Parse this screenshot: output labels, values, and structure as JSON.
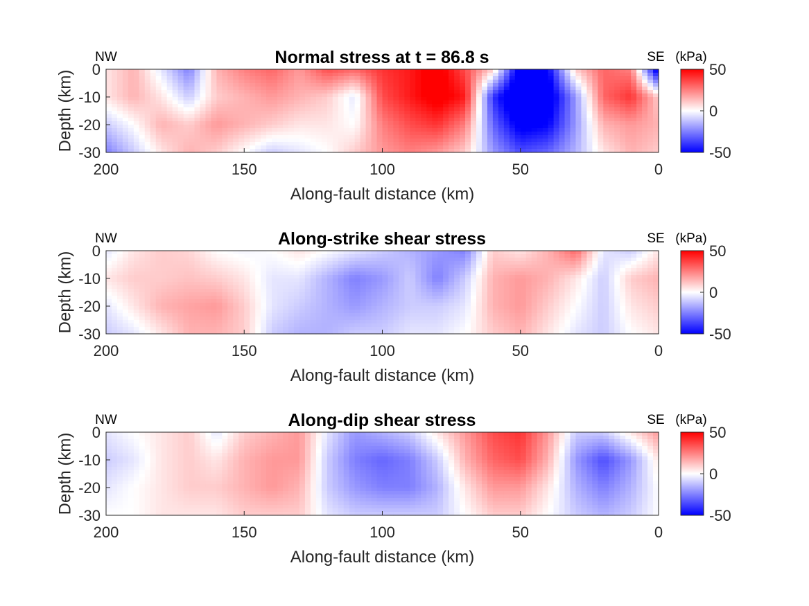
{
  "figure": {
    "x_direction_left": "NW",
    "x_direction_right": "SE",
    "colorbar_unit": "(kPa)"
  },
  "colors": {
    "negative": "#0000ff",
    "zero": "#ffffff",
    "positive": "#ff0000",
    "text": "#262626"
  },
  "chart_data": [
    {
      "type": "heatmap",
      "title": "Normal stress at t = 86.8 s",
      "xlabel": "Along-fault distance (km)",
      "ylabel": "Depth (km)",
      "x_reversed": true,
      "xlim": [
        200,
        0
      ],
      "ylim": [
        -30,
        0
      ],
      "xticks": [
        "200",
        "150",
        "100",
        "50",
        "0"
      ],
      "yticks": [
        "0",
        "-10",
        "-20",
        "-30"
      ],
      "colorbar": {
        "range": [
          -50,
          50
        ],
        "ticks": [
          "50",
          "0",
          "-50"
        ],
        "unit": "(kPa)"
      },
      "x": [
        200,
        190,
        180,
        170,
        160,
        150,
        140,
        130,
        120,
        110,
        100,
        90,
        80,
        70,
        60,
        50,
        40,
        30,
        20,
        10,
        0
      ],
      "y": [
        0,
        -10,
        -20,
        -30
      ],
      "z": [
        [
          5,
          15,
          -5,
          -25,
          15,
          25,
          30,
          20,
          35,
          30,
          40,
          45,
          55,
          35,
          10,
          -60,
          -50,
          10,
          30,
          25,
          -60
        ],
        [
          5,
          15,
          5,
          -10,
          10,
          15,
          20,
          15,
          10,
          -5,
          35,
          45,
          55,
          45,
          -40,
          -70,
          -60,
          -20,
          30,
          40,
          10
        ],
        [
          -10,
          0,
          15,
          10,
          20,
          15,
          10,
          5,
          5,
          0,
          25,
          35,
          40,
          25,
          -30,
          -55,
          -50,
          -20,
          15,
          20,
          15
        ],
        [
          -25,
          -10,
          5,
          15,
          10,
          0,
          -10,
          -5,
          0,
          10,
          20,
          25,
          20,
          10,
          -20,
          -35,
          -30,
          -15,
          5,
          15,
          10
        ]
      ]
    },
    {
      "type": "heatmap",
      "title": "Along-strike shear stress",
      "xlabel": "Along-fault distance (km)",
      "ylabel": "Depth (km)",
      "x_reversed": true,
      "xlim": [
        200,
        0
      ],
      "ylim": [
        -30,
        0
      ],
      "xticks": [
        "200",
        "150",
        "100",
        "50",
        "0"
      ],
      "yticks": [
        "0",
        "-10",
        "-20",
        "-30"
      ],
      "colorbar": {
        "range": [
          -50,
          50
        ],
        "ticks": [
          "50",
          "0",
          "-50"
        ],
        "unit": "(kPa)"
      },
      "x": [
        200,
        190,
        180,
        170,
        160,
        150,
        140,
        130,
        120,
        110,
        100,
        90,
        80,
        70,
        60,
        50,
        40,
        30,
        20,
        10,
        0
      ],
      "y": [
        0,
        -10,
        -20,
        -30
      ],
      "z": [
        [
          -5,
          5,
          10,
          8,
          0,
          -2,
          0,
          5,
          0,
          -5,
          -10,
          -15,
          -20,
          -25,
          10,
          5,
          15,
          30,
          -5,
          -10,
          5
        ],
        [
          5,
          10,
          10,
          12,
          10,
          5,
          -5,
          -5,
          -15,
          -25,
          -20,
          -10,
          -25,
          -10,
          15,
          20,
          15,
          5,
          -10,
          10,
          15
        ],
        [
          -5,
          5,
          15,
          18,
          20,
          10,
          -5,
          -10,
          -15,
          -20,
          -15,
          -10,
          -10,
          -5,
          15,
          20,
          10,
          0,
          -10,
          5,
          10
        ],
        [
          -10,
          -5,
          5,
          15,
          15,
          10,
          -10,
          -15,
          -15,
          -10,
          -10,
          -5,
          -5,
          0,
          10,
          15,
          5,
          -5,
          -10,
          0,
          5
        ]
      ]
    },
    {
      "type": "heatmap",
      "title": "Along-dip shear stress",
      "xlabel": "Along-fault distance (km)",
      "ylabel": "Depth (km)",
      "x_reversed": true,
      "xlim": [
        200,
        0
      ],
      "ylim": [
        -30,
        0
      ],
      "xticks": [
        "200",
        "150",
        "100",
        "50",
        "0"
      ],
      "yticks": [
        "0",
        "-10",
        "-20",
        "-30"
      ],
      "colorbar": {
        "range": [
          -50,
          50
        ],
        "ticks": [
          "50",
          "0",
          "-50"
        ],
        "unit": "(kPa)"
      },
      "x": [
        200,
        190,
        180,
        170,
        160,
        150,
        140,
        130,
        120,
        110,
        100,
        90,
        80,
        70,
        60,
        50,
        40,
        30,
        20,
        10,
        0
      ],
      "y": [
        0,
        -10,
        -20,
        -30
      ],
      "z": [
        [
          -5,
          0,
          5,
          10,
          -5,
          10,
          15,
          20,
          -5,
          -20,
          -15,
          -10,
          5,
          20,
          35,
          40,
          20,
          -10,
          -10,
          5,
          20
        ],
        [
          -10,
          -5,
          5,
          10,
          5,
          15,
          20,
          20,
          -10,
          -25,
          -30,
          -25,
          -10,
          15,
          30,
          35,
          15,
          -20,
          -35,
          -20,
          5
        ],
        [
          -5,
          0,
          5,
          10,
          10,
          15,
          20,
          15,
          -10,
          -20,
          -25,
          -25,
          -15,
          5,
          20,
          20,
          5,
          -15,
          -25,
          -15,
          0
        ],
        [
          0,
          0,
          5,
          5,
          5,
          10,
          10,
          10,
          -5,
          -10,
          -10,
          -10,
          -10,
          0,
          10,
          10,
          0,
          -10,
          -15,
          -10,
          0
        ]
      ]
    }
  ]
}
